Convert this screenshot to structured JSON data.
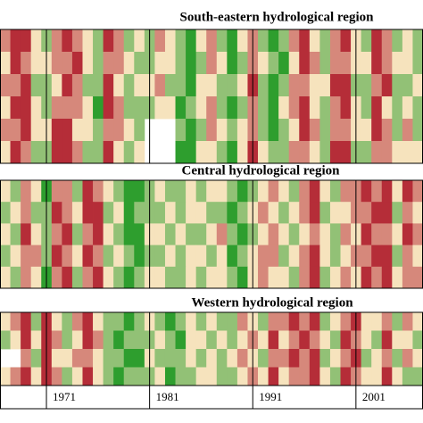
{
  "chart_data": [
    {
      "type": "heatmap",
      "title": "South-eastern hydrological region",
      "x": [
        1967,
        1968,
        1969,
        1970,
        1971,
        1972,
        1973,
        1974,
        1975,
        1976,
        1977,
        1978,
        1979,
        1980,
        1981,
        1982,
        1983,
        1984,
        1985,
        1986,
        1987,
        1988,
        1989,
        1990,
        1991,
        1992,
        1993,
        1994,
        1995,
        1996,
        1997,
        1998,
        1999,
        2000,
        2001,
        2002,
        2003,
        2004,
        2005,
        2006,
        2007
      ],
      "xlim": [
        1966.5,
        2007.5
      ],
      "vlim": [
        -2,
        2
      ],
      "colorscale": [
        "#b52d38",
        "#f6e3bd",
        "#2e9e2e"
      ],
      "values": [
        [
          -1,
          -2,
          -2,
          0,
          1,
          -1,
          -2,
          -1,
          0,
          1,
          -2,
          -1,
          1,
          0,
          1,
          -1,
          0,
          1,
          2,
          0,
          -1,
          1,
          2,
          0,
          -1,
          1,
          2,
          1,
          -1,
          -2,
          0,
          1,
          -1,
          -2,
          0,
          1,
          -2,
          -1,
          1,
          0,
          1
        ],
        [
          0,
          -2,
          -1,
          0,
          0,
          -1,
          -1,
          -2,
          0,
          1,
          -1,
          -1,
          0,
          1,
          1,
          0,
          0,
          1,
          2,
          1,
          -1,
          0,
          2,
          1,
          -1,
          0,
          1,
          2,
          0,
          -2,
          -1,
          1,
          -1,
          -1,
          0,
          0,
          -2,
          -1,
          0,
          0,
          1
        ],
        [
          -1,
          -1,
          -2,
          1,
          1,
          0,
          -2,
          -1,
          1,
          1,
          -2,
          0,
          1,
          0,
          0,
          -1,
          1,
          1,
          2,
          0,
          0,
          1,
          1,
          0,
          -2,
          1,
          2,
          1,
          -1,
          -1,
          0,
          0,
          -2,
          -2,
          1,
          1,
          -1,
          -2,
          1,
          1,
          0
        ],
        [
          0,
          -2,
          -2,
          0,
          1,
          -1,
          -1,
          -1,
          0,
          2,
          -2,
          -1,
          1,
          1,
          1,
          0,
          0,
          2,
          1,
          0,
          -1,
          1,
          2,
          1,
          -1,
          1,
          2,
          0,
          -1,
          -2,
          0,
          1,
          -1,
          -2,
          0,
          1,
          -2,
          0,
          1,
          0,
          1
        ],
        [
          -1,
          -1,
          -2,
          0,
          0,
          -2,
          -2,
          0,
          0,
          1,
          -1,
          -1,
          0,
          1,
          null,
          null,
          null,
          1,
          2,
          1,
          -1,
          0,
          1,
          0,
          -1,
          1,
          2,
          1,
          0,
          -2,
          -1,
          1,
          -1,
          -1,
          0,
          0,
          -2,
          -1,
          1,
          -1,
          1
        ],
        [
          0,
          -2,
          -1,
          1,
          1,
          -2,
          -2,
          -1,
          1,
          1,
          -2,
          0,
          1,
          0,
          null,
          null,
          null,
          2,
          2,
          0,
          0,
          1,
          2,
          0,
          -2,
          0,
          1,
          1,
          -1,
          -1,
          0,
          1,
          -2,
          -2,
          1,
          1,
          -1,
          -1,
          0,
          0,
          0
        ]
      ]
    },
    {
      "type": "heatmap",
      "title": "Central hydrological region",
      "x": [
        1967,
        1968,
        1969,
        1970,
        1971,
        1972,
        1973,
        1974,
        1975,
        1976,
        1977,
        1978,
        1979,
        1980,
        1981,
        1982,
        1983,
        1984,
        1985,
        1986,
        1987,
        1988,
        1989,
        1990,
        1991,
        1992,
        1993,
        1994,
        1995,
        1996,
        1997,
        1998,
        1999,
        2000,
        2001,
        2002,
        2003,
        2004,
        2005,
        2006,
        2007
      ],
      "xlim": [
        1966.5,
        2007.5
      ],
      "vlim": [
        -2,
        2
      ],
      "colorscale": [
        "#b52d38",
        "#f6e3bd",
        "#2e9e2e"
      ],
      "values": [
        [
          0,
          1,
          -1,
          0,
          2,
          -1,
          -1,
          1,
          -2,
          -1,
          0,
          1,
          2,
          2,
          1,
          0,
          1,
          1,
          0,
          1,
          0,
          0,
          1,
          2,
          1,
          0,
          -1,
          0,
          1,
          -1,
          -2,
          0,
          1,
          -1,
          -1,
          -2,
          -1,
          -2,
          0,
          -2,
          -1
        ],
        [
          1,
          0,
          -1,
          1,
          1,
          -2,
          -1,
          0,
          -2,
          -2,
          1,
          0,
          2,
          1,
          1,
          1,
          0,
          1,
          0,
          0,
          1,
          1,
          2,
          1,
          0,
          -1,
          0,
          1,
          0,
          -1,
          -2,
          1,
          0,
          0,
          -1,
          -1,
          -2,
          -2,
          1,
          -1,
          0
        ],
        [
          0,
          1,
          -2,
          0,
          1,
          -1,
          -2,
          1,
          -1,
          -2,
          0,
          1,
          2,
          2,
          0,
          0,
          1,
          0,
          1,
          1,
          0,
          -1,
          1,
          2,
          1,
          0,
          -1,
          0,
          1,
          0,
          -1,
          0,
          1,
          -1,
          0,
          -2,
          -1,
          -1,
          0,
          -2,
          -1
        ],
        [
          1,
          0,
          -1,
          -1,
          1,
          -2,
          -1,
          0,
          -2,
          -1,
          1,
          0,
          1,
          2,
          1,
          1,
          0,
          1,
          0,
          0,
          1,
          0,
          2,
          1,
          0,
          -1,
          -1,
          1,
          0,
          -1,
          -2,
          0,
          1,
          0,
          -1,
          -1,
          -2,
          -2,
          1,
          -1,
          0
        ],
        [
          0,
          1,
          -1,
          0,
          2,
          -1,
          -2,
          1,
          -1,
          -2,
          0,
          1,
          2,
          1,
          0,
          0,
          1,
          1,
          0,
          1,
          0,
          0,
          1,
          2,
          0,
          -1,
          0,
          0,
          1,
          -1,
          -2,
          1,
          0,
          -1,
          0,
          -2,
          -1,
          -2,
          0,
          -1,
          -1
        ]
      ]
    },
    {
      "type": "heatmap",
      "title": "Western hydrological region",
      "x": [
        1967,
        1968,
        1969,
        1970,
        1971,
        1972,
        1973,
        1974,
        1975,
        1976,
        1977,
        1978,
        1979,
        1980,
        1981,
        1982,
        1983,
        1984,
        1985,
        1986,
        1987,
        1988,
        1989,
        1990,
        1991,
        1992,
        1993,
        1994,
        1995,
        1996,
        1997,
        1998,
        1999,
        2000,
        2001,
        2002,
        2003,
        2004,
        2005,
        2006,
        2007
      ],
      "xlim": [
        1966.5,
        2007.5
      ],
      "vlim": [
        -2,
        2
      ],
      "colorscale": [
        "#b52d38",
        "#f6e3bd",
        "#2e9e2e"
      ],
      "xticks": [
        1971,
        1981,
        1991,
        2001
      ],
      "grid": true,
      "values": [
        [
          0,
          -1,
          -2,
          1,
          -2,
          0,
          1,
          -1,
          -2,
          0,
          1,
          1,
          2,
          1,
          0,
          1,
          2,
          1,
          0,
          1,
          0,
          1,
          1,
          -1,
          0,
          1,
          -1,
          -1,
          -2,
          -1,
          -2,
          1,
          0,
          -1,
          -2,
          0,
          0,
          -1,
          1,
          -1,
          0
        ],
        [
          1,
          0,
          -2,
          0,
          -2,
          -1,
          1,
          0,
          -2,
          -1,
          1,
          2,
          1,
          1,
          1,
          0,
          1,
          2,
          0,
          0,
          1,
          0,
          1,
          0,
          -1,
          0,
          -2,
          0,
          -1,
          -2,
          -1,
          0,
          1,
          -2,
          -1,
          0,
          1,
          -2,
          0,
          0,
          1
        ],
        [
          null,
          null,
          -1,
          1,
          -2,
          0,
          0,
          -1,
          -1,
          0,
          1,
          1,
          2,
          2,
          0,
          1,
          1,
          1,
          0,
          1,
          0,
          1,
          0,
          -1,
          0,
          1,
          -1,
          -1,
          -2,
          -1,
          -2,
          1,
          0,
          -1,
          -2,
          1,
          0,
          -1,
          1,
          -1,
          0
        ],
        [
          0,
          -1,
          -2,
          0,
          -2,
          -1,
          1,
          0,
          -2,
          0,
          1,
          2,
          1,
          1,
          1,
          0,
          2,
          1,
          1,
          0,
          0,
          1,
          1,
          0,
          -1,
          0,
          -2,
          0,
          -1,
          -1,
          -2,
          0,
          1,
          -2,
          -1,
          0,
          0,
          -2,
          0,
          1,
          1
        ]
      ]
    }
  ]
}
